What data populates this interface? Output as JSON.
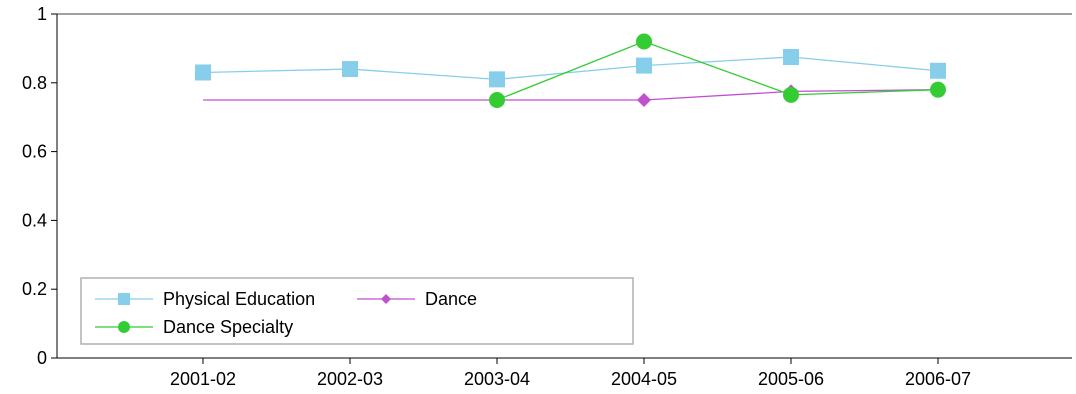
{
  "chart_data": {
    "type": "line",
    "title": "",
    "xlabel": "",
    "ylabel": "",
    "categories": [
      "2001-02",
      "2002-03",
      "2003-04",
      "2004-05",
      "2005-06",
      "2006-07"
    ],
    "ylim": [
      0,
      1
    ],
    "yticks": [
      "0",
      "0.2",
      "0.4",
      "0.6",
      "0.8",
      "1"
    ],
    "yticks_values": [
      0,
      0.2,
      0.4,
      0.6,
      0.8,
      1
    ],
    "grid": false,
    "legend": "bottom-left",
    "series": [
      {
        "name": "Physical Education",
        "color": "#87ceeb",
        "marker": "square",
        "values": [
          0.83,
          0.84,
          0.81,
          0.85,
          0.875,
          0.835
        ]
      },
      {
        "name": "Dance",
        "color": "#c050d0",
        "marker": "diamond",
        "values": [
          0.75,
          0.75,
          0.75,
          0.75,
          0.775,
          0.78
        ]
      },
      {
        "name": "Dance Specialty",
        "color": "#33cc33",
        "marker": "circle",
        "values": [
          null,
          null,
          0.75,
          0.92,
          0.765,
          0.78
        ]
      }
    ]
  }
}
